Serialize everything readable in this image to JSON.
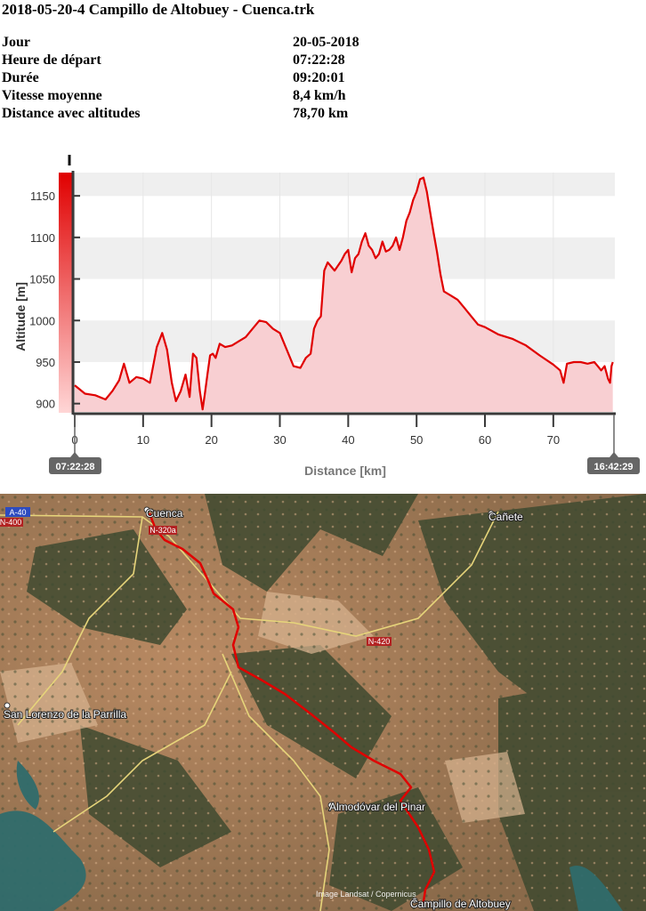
{
  "header": {
    "title": "2018-05-20-4 Campillo de Altobuey - Cuenca.trk"
  },
  "summary": [
    {
      "label": "Jour",
      "value": "20-05-2018"
    },
    {
      "label": "Heure de départ",
      "value": "07:22:28"
    },
    {
      "label": "Durée",
      "value": "09:20:01"
    },
    {
      "label": "Vitesse moyenne",
      "value": "8,4 km/h"
    },
    {
      "label": "Distance avec altitudes",
      "value": "78,70 km"
    }
  ],
  "chart_data": {
    "type": "area",
    "title": "",
    "xlabel": "Distance [km]",
    "ylabel": "Altitude [m]",
    "xlim": [
      0,
      79
    ],
    "ylim": [
      890,
      1178
    ],
    "x_ticks": [
      0,
      10,
      20,
      30,
      40,
      50,
      60,
      70
    ],
    "y_ticks": [
      900,
      950,
      1000,
      1050,
      1100,
      1150
    ],
    "grid": true,
    "colors": {
      "line": "#e00000",
      "fill": "#f8cfd2",
      "band": "#efefef",
      "axis": "#3a3a3a",
      "scale_top": "#e00000",
      "scale_bottom": "#ffd0d0"
    },
    "start_time": "07:22:28",
    "end_time": "16:42:29",
    "series": [
      {
        "x": [
          0,
          1.5,
          3,
          4.5,
          5.5,
          6.5,
          7.2,
          8,
          9,
          10,
          11,
          12,
          12.8,
          13.5,
          14.2,
          14.8,
          15.5,
          16.2,
          16.8,
          17.3,
          17.8,
          18.3,
          18.7,
          19,
          19.4,
          19.8,
          20.2,
          20.6,
          21.2,
          22,
          23,
          24,
          25,
          26,
          27,
          28,
          29,
          30,
          31,
          32,
          33,
          33.8,
          34.5,
          35,
          35.5,
          36,
          36.5,
          37,
          37.5,
          38,
          39,
          39.5,
          40,
          40.5,
          41,
          41.5,
          42,
          42.5,
          43,
          43.5,
          44,
          44.5,
          45,
          45.5,
          46,
          46.5,
          47,
          47.5,
          48,
          48.5,
          49,
          49.5,
          50,
          50.5,
          51,
          51.5,
          52,
          52.5,
          53,
          53.5,
          54,
          55,
          56,
          57,
          58,
          59,
          60,
          62,
          64,
          66,
          68,
          70,
          71,
          71.5,
          72,
          73,
          74,
          75,
          76,
          76.5,
          77,
          77.5,
          78,
          78.3,
          78.5,
          78.7
        ],
        "y": [
          922,
          912,
          910,
          905,
          915,
          928,
          948,
          925,
          932,
          930,
          925,
          968,
          985,
          965,
          925,
          903,
          915,
          935,
          908,
          960,
          955,
          915,
          893,
          910,
          935,
          958,
          960,
          955,
          972,
          968,
          970,
          975,
          980,
          990,
          1000,
          998,
          990,
          985,
          965,
          945,
          943,
          955,
          960,
          990,
          1000,
          1005,
          1060,
          1070,
          1065,
          1060,
          1072,
          1080,
          1085,
          1058,
          1075,
          1080,
          1095,
          1105,
          1090,
          1085,
          1075,
          1080,
          1095,
          1083,
          1085,
          1090,
          1100,
          1085,
          1100,
          1120,
          1130,
          1145,
          1155,
          1170,
          1172,
          1155,
          1130,
          1105,
          1082,
          1055,
          1035,
          1030,
          1025,
          1015,
          1005,
          995,
          992,
          983,
          978,
          970,
          958,
          947,
          940,
          925,
          948,
          950,
          950,
          948,
          950,
          945,
          940,
          945,
          930,
          925,
          945,
          950
        ]
      }
    ]
  },
  "map": {
    "places": [
      "Cuenca",
      "Cañete",
      "San Lorenzo de la Parrilla",
      "Almodóvar del Pinar",
      "Campillo de Altobuey"
    ],
    "roads": [
      "A-40",
      "N-400",
      "N-320a",
      "N-420"
    ],
    "attribution": "Image Landsat / Copernicus"
  }
}
